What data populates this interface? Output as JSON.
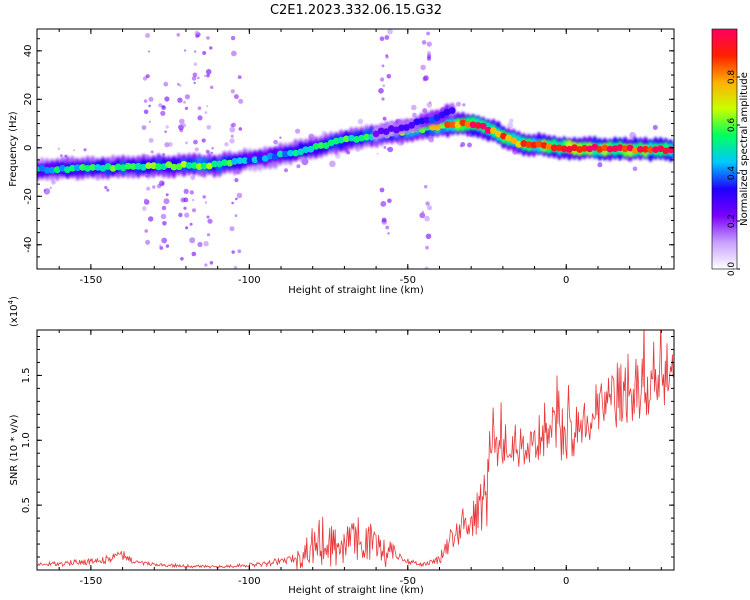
{
  "figure": {
    "title": "C2E1.2023.332.06.15.G32"
  },
  "spectrogram": {
    "xlabel": "Height of straight line (km)",
    "ylabel": "Frequency (Hz)",
    "x_ticks": [
      "-150",
      "-100",
      "-50",
      "0"
    ],
    "y_ticks": [
      "40",
      "20",
      "0",
      "-20",
      "-40"
    ]
  },
  "colorbar": {
    "label": "Normalized spectral amplitude",
    "ticks": [
      "0.0",
      "0.2",
      "0.4",
      "0.6",
      "0.8"
    ],
    "colors": [
      "#ffffff",
      "#c8a0ff",
      "#7a00ff",
      "#1f00ff",
      "#00c8ff",
      "#00ff60",
      "#c8ff00",
      "#ffb000",
      "#ff2000",
      "#ff0060"
    ]
  },
  "snr": {
    "xlabel": "Height of straight line (km)",
    "ylabel": "SNR (10 * v/v)",
    "multiplier": "(x10",
    "multiplier_exp": "4",
    "multiplier_close": ")",
    "x_ticks": [
      "-150",
      "-100",
      "-50",
      "0"
    ],
    "y_ticks": [
      "0.5",
      "1.0",
      "1.5"
    ]
  },
  "chart_data": [
    {
      "type": "heatmap",
      "title": "C2E1.2023.332.06.15.G32",
      "xlabel": "Height of straight line (km)",
      "ylabel": "Frequency (Hz)",
      "xlim": [
        -167,
        34
      ],
      "ylim": [
        -50,
        49
      ],
      "colorscale_range": [
        0,
        1
      ],
      "grid": false,
      "ridge": {
        "x": [
          -167,
          -140,
          -110,
          -100,
          -90,
          -80,
          -70,
          -60,
          -50,
          -40,
          -30,
          -25,
          -15,
          0,
          34
        ],
        "y": [
          -9,
          -8,
          -7,
          -5,
          -3,
          0,
          3,
          5,
          7,
          9,
          10,
          8,
          2,
          0,
          -1
        ],
        "amplitude": [
          0.45,
          0.55,
          0.6,
          0.4,
          0.45,
          0.5,
          0.55,
          0.55,
          0.6,
          0.7,
          0.95,
          0.9,
          0.8,
          0.95,
          0.9
        ]
      },
      "upper_branch": {
        "x": [
          -60,
          -50,
          -45,
          -40,
          -35
        ],
        "y": [
          6,
          9,
          11,
          13,
          16
        ],
        "amplitude": [
          0.25,
          0.3,
          0.35,
          0.4,
          0.35
        ]
      }
    },
    {
      "type": "line",
      "title": "",
      "xlabel": "Height of straight line (km)",
      "ylabel": "SNR (10 * v/v)",
      "xlim": [
        -167,
        34
      ],
      "ylim": [
        0,
        1.85
      ],
      "y_multiplier": 10000,
      "color": "#e8383a",
      "envelope": {
        "x": [
          -167,
          -150,
          -145,
          -141,
          -137,
          -130,
          -110,
          -95,
          -85,
          -80,
          -77,
          -72,
          -67,
          -62,
          -57,
          -52,
          -46,
          -40,
          -37,
          -34,
          -30,
          -25,
          -24,
          -20,
          -10,
          -5,
          0,
          10,
          20,
          30,
          34
        ],
        "y": [
          0.05,
          0.08,
          0.1,
          0.18,
          0.08,
          0.05,
          0.03,
          0.06,
          0.12,
          0.3,
          0.35,
          0.3,
          0.38,
          0.32,
          0.25,
          0.12,
          0.05,
          0.1,
          0.28,
          0.42,
          0.5,
          0.75,
          1.1,
          1.15,
          1.1,
          1.3,
          1.15,
          1.4,
          1.6,
          1.75,
          1.8
        ]
      }
    }
  ]
}
